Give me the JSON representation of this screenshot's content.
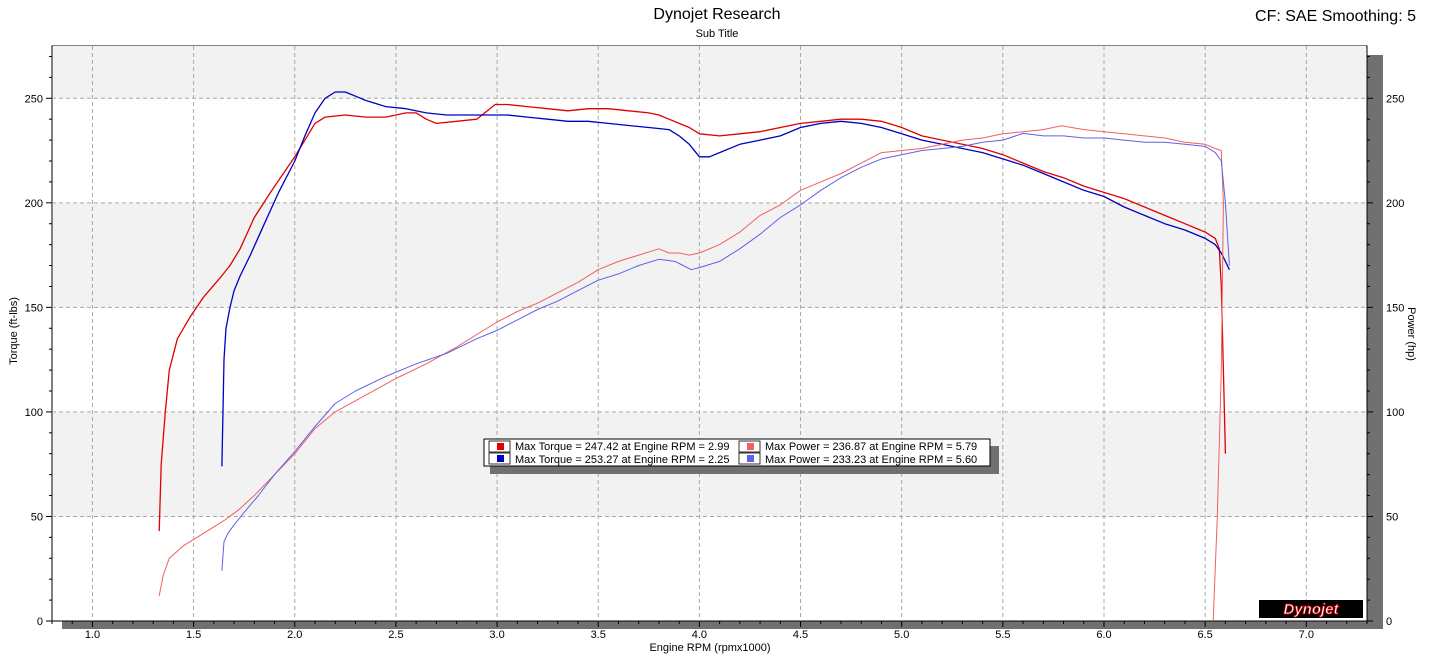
{
  "header": {
    "title": "Dynojet Research",
    "subtitle": "Sub Title",
    "cf_label": "CF: SAE Smoothing: 5"
  },
  "logo_text": "Dynojet",
  "colors": {
    "run1_torque": "#e00000",
    "run1_power": "#f06060",
    "run2_torque": "#0000c0",
    "run2_power": "#6060e8",
    "band": "#f2f2f2",
    "grid": "#a8a8a8",
    "frame_shadow": "#707070"
  },
  "chart_data": {
    "type": "line",
    "xlabel": "Engine RPM (rpmx1000)",
    "ylabel_left": "Torque (ft-lbs)",
    "ylabel_right": "Power (hp)",
    "xlim": [
      0.8,
      7.3
    ],
    "ylim": [
      0,
      275
    ],
    "x_ticks": [
      "1.0",
      "1.5",
      "2.0",
      "2.5",
      "3.0",
      "3.5",
      "4.0",
      "4.5",
      "5.0",
      "5.5",
      "6.0",
      "6.5",
      "7.0"
    ],
    "y_ticks_left": [
      "0",
      "50",
      "100",
      "150",
      "200",
      "250"
    ],
    "y_ticks_right": [
      "0",
      "50",
      "100",
      "150",
      "200",
      "250"
    ],
    "grid": true,
    "legend": {
      "position": "center",
      "entries": [
        "Max Torque = 247.42 at Engine RPM = 2.99",
        "Max Torque = 253.27 at Engine RPM = 2.25",
        "Max Power = 236.87 at Engine RPM = 5.79",
        "Max Power = 233.23 at Engine RPM = 5.60"
      ]
    },
    "series": [
      {
        "color": "#e00000",
        "width": 1.3,
        "x": [
          1.33,
          1.34,
          1.36,
          1.38,
          1.42,
          1.48,
          1.55,
          1.63,
          1.68,
          1.73,
          1.8,
          1.88,
          1.95,
          2.0,
          2.05,
          2.1,
          2.15,
          2.25,
          2.35,
          2.45,
          2.55,
          2.6,
          2.65,
          2.7,
          2.8,
          2.9,
          2.99,
          3.05,
          3.15,
          3.25,
          3.35,
          3.45,
          3.55,
          3.65,
          3.75,
          3.8,
          3.85,
          3.9,
          3.95,
          4.0,
          4.1,
          4.2,
          4.3,
          4.4,
          4.5,
          4.6,
          4.7,
          4.8,
          4.9,
          5.0,
          5.1,
          5.2,
          5.3,
          5.4,
          5.5,
          5.6,
          5.7,
          5.8,
          5.9,
          6.0,
          6.1,
          6.2,
          6.3,
          6.4,
          6.5,
          6.55,
          6.57,
          6.58,
          6.59,
          6.6
        ],
        "y": [
          43,
          75,
          100,
          120,
          135,
          145,
          155,
          164,
          170,
          178,
          193,
          205,
          215,
          222,
          230,
          238,
          241,
          242,
          241,
          241,
          243,
          243,
          240,
          238,
          239,
          240,
          247,
          247,
          246,
          245,
          244,
          245,
          245,
          244,
          243,
          242,
          240,
          238,
          236,
          233,
          232,
          233,
          234,
          236,
          238,
          239,
          240,
          240,
          239,
          236,
          232,
          230,
          228,
          226,
          223,
          219,
          215,
          212,
          208,
          205,
          202,
          198,
          194,
          190,
          186,
          183,
          178,
          160,
          120,
          80
        ]
      },
      {
        "color": "#0000c0",
        "width": 1.3,
        "x": [
          1.64,
          1.65,
          1.66,
          1.68,
          1.7,
          1.73,
          1.78,
          1.85,
          1.92,
          2.0,
          2.05,
          2.1,
          2.15,
          2.2,
          2.25,
          2.3,
          2.35,
          2.45,
          2.55,
          2.65,
          2.75,
          2.85,
          2.95,
          3.05,
          3.15,
          3.25,
          3.35,
          3.45,
          3.55,
          3.65,
          3.75,
          3.85,
          3.9,
          3.95,
          4.0,
          4.05,
          4.1,
          4.2,
          4.3,
          4.4,
          4.5,
          4.6,
          4.7,
          4.8,
          4.9,
          5.0,
          5.1,
          5.2,
          5.3,
          5.4,
          5.5,
          5.6,
          5.7,
          5.8,
          5.9,
          6.0,
          6.1,
          6.2,
          6.3,
          6.4,
          6.5,
          6.55,
          6.58,
          6.6,
          6.62
        ],
        "y": [
          74,
          125,
          140,
          150,
          158,
          165,
          175,
          190,
          205,
          220,
          232,
          243,
          250,
          253,
          253,
          251,
          249,
          246,
          245,
          243,
          242,
          242,
          242,
          242,
          241,
          240,
          239,
          239,
          238,
          237,
          236,
          235,
          232,
          228,
          222,
          222,
          224,
          228,
          230,
          232,
          236,
          238,
          239,
          238,
          236,
          233,
          230,
          228,
          226,
          224,
          221,
          218,
          214,
          210,
          206,
          203,
          198,
          194,
          190,
          187,
          183,
          180,
          176,
          172,
          168
        ]
      },
      {
        "color": "#f06060",
        "width": 1.0,
        "x": [
          1.33,
          1.35,
          1.38,
          1.45,
          1.55,
          1.65,
          1.72,
          1.8,
          1.9,
          2.0,
          2.1,
          2.2,
          2.35,
          2.5,
          2.65,
          2.8,
          2.9,
          3.0,
          3.1,
          3.2,
          3.3,
          3.4,
          3.5,
          3.6,
          3.7,
          3.8,
          3.85,
          3.9,
          3.95,
          4.0,
          4.1,
          4.2,
          4.3,
          4.4,
          4.5,
          4.6,
          4.7,
          4.8,
          4.9,
          5.0,
          5.1,
          5.2,
          5.3,
          5.4,
          5.5,
          5.6,
          5.7,
          5.79,
          5.9,
          6.0,
          6.1,
          6.2,
          6.3,
          6.4,
          6.5,
          6.55,
          6.58,
          6.59,
          6.58,
          6.56,
          6.54
        ],
        "y": [
          12,
          22,
          30,
          36,
          42,
          48,
          53,
          60,
          70,
          80,
          92,
          100,
          108,
          116,
          123,
          131,
          137,
          143,
          148,
          152,
          157,
          162,
          168,
          172,
          175,
          178,
          176,
          176,
          175,
          176,
          180,
          186,
          194,
          199,
          206,
          210,
          214,
          219,
          224,
          225,
          226,
          228,
          230,
          231,
          233,
          234,
          235,
          236.9,
          235,
          234,
          233,
          232,
          231,
          229,
          228,
          226,
          225,
          200,
          120,
          50,
          0
        ]
      },
      {
        "color": "#6060e8",
        "width": 1.0,
        "x": [
          1.64,
          1.65,
          1.67,
          1.7,
          1.75,
          1.82,
          1.9,
          2.0,
          2.1,
          2.2,
          2.3,
          2.45,
          2.6,
          2.75,
          2.9,
          3.0,
          3.1,
          3.2,
          3.3,
          3.4,
          3.5,
          3.6,
          3.7,
          3.8,
          3.88,
          3.92,
          3.96,
          4.0,
          4.1,
          4.2,
          4.3,
          4.4,
          4.5,
          4.6,
          4.7,
          4.8,
          4.9,
          5.0,
          5.1,
          5.2,
          5.3,
          5.4,
          5.5,
          5.6,
          5.7,
          5.8,
          5.9,
          6.0,
          6.1,
          6.2,
          6.3,
          6.4,
          6.5,
          6.55,
          6.58,
          6.6,
          6.62
        ],
        "y": [
          24,
          38,
          42,
          46,
          52,
          60,
          70,
          81,
          93,
          104,
          110,
          117,
          123,
          128,
          135,
          139,
          144,
          149,
          153,
          158,
          163,
          166,
          170,
          173,
          172,
          170,
          168,
          169,
          172,
          178,
          185,
          193,
          199,
          206,
          212,
          217,
          221,
          223,
          225,
          226,
          227,
          229,
          230,
          233.2,
          232,
          232,
          231,
          231,
          230,
          229,
          229,
          228,
          227,
          224,
          220,
          200,
          170
        ]
      }
    ]
  }
}
